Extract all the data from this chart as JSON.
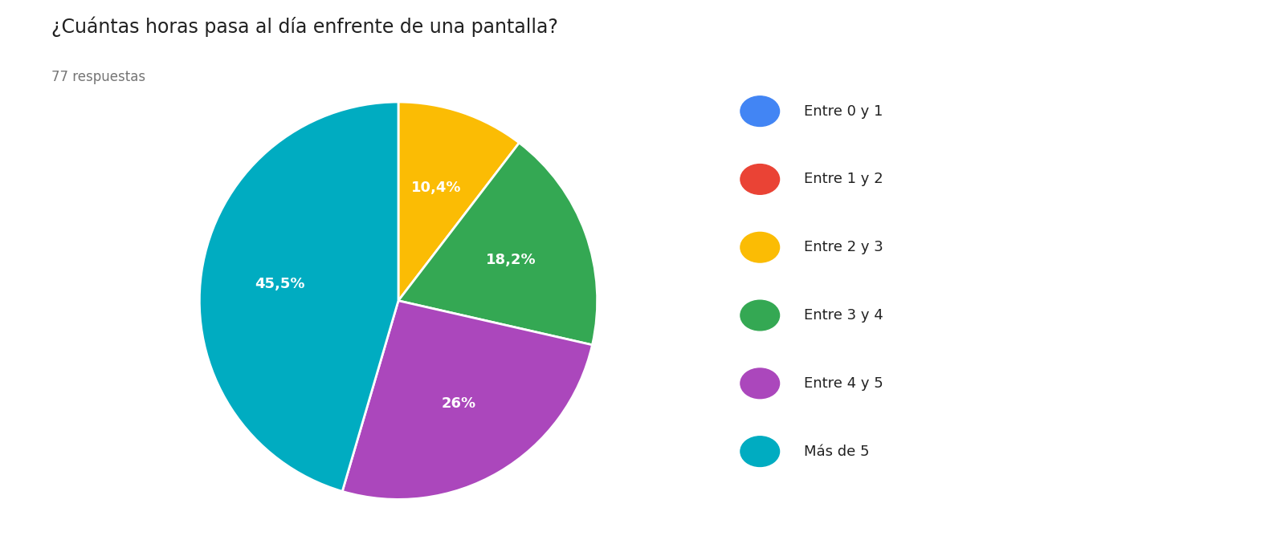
{
  "title": "¿Cuántas horas pasa al día enfrente de una pantalla?",
  "subtitle": "77 respuestas",
  "labels": [
    "Entre 0 y 1",
    "Entre 1 y 2",
    "Entre 2 y 3",
    "Entre 3 y 4",
    "Entre 4 y 5",
    "Más de 5"
  ],
  "values": [
    0.0,
    0.0,
    10.4,
    18.2,
    26.0,
    45.5
  ],
  "colors": [
    "#4285F4",
    "#EA4335",
    "#FBBC04",
    "#34A853",
    "#AB47BC",
    "#00ACC1"
  ],
  "autopct_labels": [
    "",
    "",
    "10,4%",
    "18,2%",
    "26%",
    "45,5%"
  ],
  "background_color": "#ffffff",
  "title_fontsize": 17,
  "subtitle_fontsize": 12,
  "legend_fontsize": 13,
  "autopct_fontsize": 13,
  "text_color": "#212121",
  "subtitle_color": "#757575"
}
